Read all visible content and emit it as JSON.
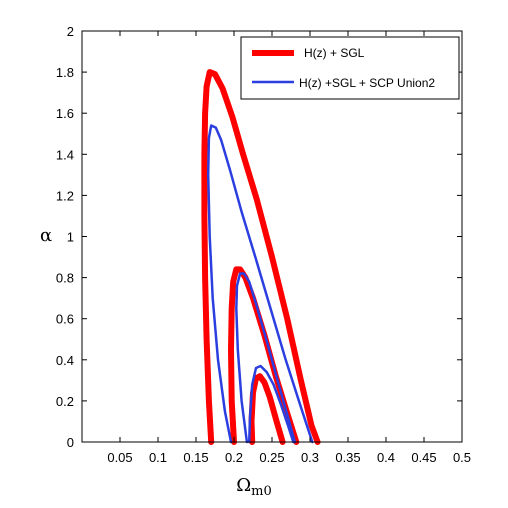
{
  "chart_data": {
    "type": "line",
    "title": "",
    "xlabel_main": "Ω",
    "xlabel_sub": "m0",
    "ylabel": "α",
    "xlim": [
      0,
      0.5
    ],
    "ylim": [
      0,
      2
    ],
    "xticks": [
      0.05,
      0.1,
      0.15,
      0.2,
      0.25,
      0.3,
      0.35,
      0.4,
      0.45,
      0.5
    ],
    "xtick_labels": [
      "0.05",
      "0.1",
      "0.15",
      "0.2",
      "0.25",
      "0.3",
      "0.35",
      "0.4",
      "0.45",
      "0.5"
    ],
    "yticks": [
      0,
      0.2,
      0.4,
      0.6,
      0.8,
      1,
      1.2,
      1.4,
      1.6,
      1.8,
      2
    ],
    "ytick_labels": [
      "0",
      "0.2",
      "0.4",
      "0.6",
      "0.8",
      "1",
      "1.2",
      "1.4",
      "1.6",
      "1.8",
      "2"
    ],
    "grid": false,
    "legend_position": "top-right",
    "series": [
      {
        "name": "H(z) + SGL",
        "color": "#ff0000",
        "contours": [
          [
            [
              0.17,
              0.0
            ],
            [
              0.167,
              0.2
            ],
            [
              0.164,
              0.5
            ],
            [
              0.162,
              0.8
            ],
            [
              0.161,
              1.1
            ],
            [
              0.161,
              1.4
            ],
            [
              0.162,
              1.6
            ],
            [
              0.164,
              1.73
            ],
            [
              0.168,
              1.8
            ],
            [
              0.175,
              1.79
            ],
            [
              0.185,
              1.72
            ],
            [
              0.198,
              1.58
            ],
            [
              0.212,
              1.4
            ],
            [
              0.23,
              1.18
            ],
            [
              0.25,
              0.9
            ],
            [
              0.27,
              0.6
            ],
            [
              0.288,
              0.3
            ],
            [
              0.302,
              0.08
            ],
            [
              0.31,
              0.0
            ]
          ],
          [
            [
              0.2,
              0.0
            ],
            [
              0.197,
              0.2
            ],
            [
              0.196,
              0.45
            ],
            [
              0.197,
              0.65
            ],
            [
              0.199,
              0.78
            ],
            [
              0.203,
              0.84
            ],
            [
              0.208,
              0.84
            ],
            [
              0.215,
              0.8
            ],
            [
              0.225,
              0.7
            ],
            [
              0.24,
              0.52
            ],
            [
              0.255,
              0.32
            ],
            [
              0.27,
              0.14
            ],
            [
              0.282,
              0.0
            ]
          ],
          [
            [
              0.224,
              0.0
            ],
            [
              0.223,
              0.1
            ],
            [
              0.225,
              0.24
            ],
            [
              0.229,
              0.31
            ],
            [
              0.234,
              0.32
            ],
            [
              0.24,
              0.29
            ],
            [
              0.247,
              0.22
            ],
            [
              0.256,
              0.1
            ],
            [
              0.264,
              0.0
            ]
          ]
        ]
      },
      {
        "name": "H(z) +SGL + SCP Union2",
        "color": "#2b3fe0",
        "contours": [
          [
            [
              0.196,
              0.0
            ],
            [
              0.188,
              0.15
            ],
            [
              0.179,
              0.4
            ],
            [
              0.172,
              0.7
            ],
            [
              0.168,
              1.0
            ],
            [
              0.166,
              1.3
            ],
            [
              0.167,
              1.48
            ],
            [
              0.17,
              1.54
            ],
            [
              0.176,
              1.53
            ],
            [
              0.183,
              1.47
            ],
            [
              0.195,
              1.32
            ],
            [
              0.21,
              1.12
            ],
            [
              0.228,
              0.9
            ],
            [
              0.248,
              0.65
            ],
            [
              0.268,
              0.4
            ],
            [
              0.288,
              0.17
            ],
            [
              0.303,
              0.0
            ]
          ],
          [
            [
              0.217,
              0.0
            ],
            [
              0.21,
              0.2
            ],
            [
              0.205,
              0.45
            ],
            [
              0.203,
              0.65
            ],
            [
              0.204,
              0.76
            ],
            [
              0.208,
              0.82
            ],
            [
              0.213,
              0.82
            ],
            [
              0.22,
              0.78
            ],
            [
              0.23,
              0.66
            ],
            [
              0.244,
              0.48
            ],
            [
              0.258,
              0.29
            ],
            [
              0.271,
              0.12
            ],
            [
              0.28,
              0.0
            ]
          ],
          [
            [
              0.22,
              0.0
            ],
            [
              0.221,
              0.12
            ],
            [
              0.224,
              0.28
            ],
            [
              0.229,
              0.36
            ],
            [
              0.235,
              0.37
            ],
            [
              0.243,
              0.34
            ],
            [
              0.252,
              0.28
            ],
            [
              0.262,
              0.18
            ],
            [
              0.272,
              0.07
            ],
            [
              0.278,
              0.0
            ]
          ]
        ]
      }
    ]
  }
}
